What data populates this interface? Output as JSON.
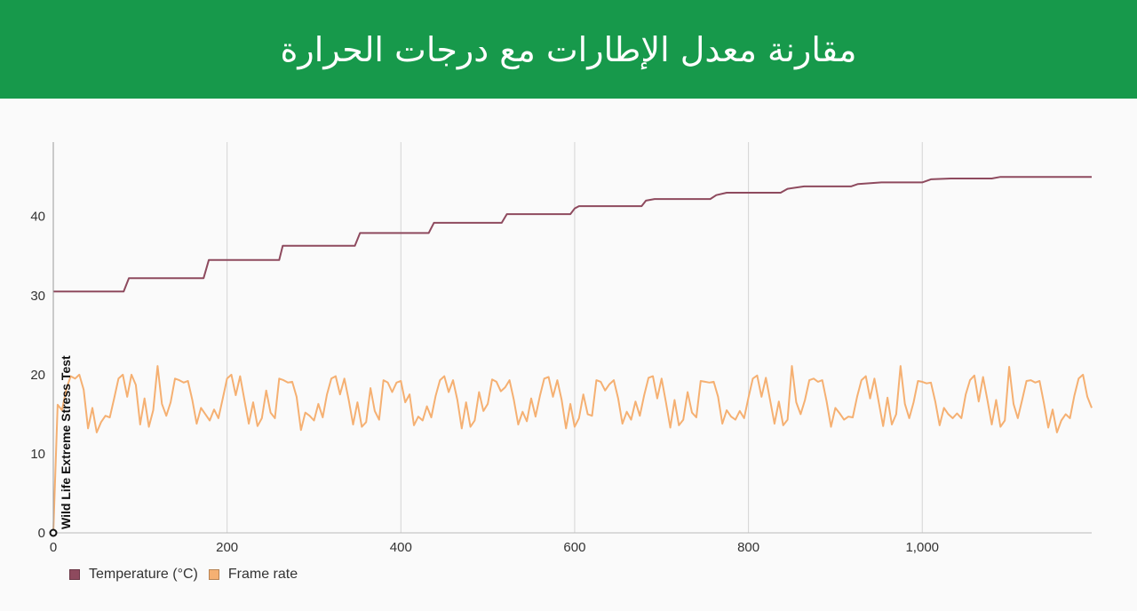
{
  "header": {
    "title": "مقارنة معدل الإطارات مع درجات الحرارة"
  },
  "chart_data": {
    "type": "line",
    "title": "مقارنة معدل الإطارات مع درجات الحرارة",
    "xlabel": "",
    "ylabel": "",
    "xlim": [
      0,
      1195
    ],
    "ylim": [
      0,
      49.4
    ],
    "x_ticks": [
      0,
      200,
      400,
      600,
      800,
      1000
    ],
    "x_tick_labels": [
      "0",
      "200",
      "400",
      "600",
      "800",
      "1,000"
    ],
    "y_ticks": [
      0,
      10,
      20,
      30,
      40
    ],
    "y_tick_labels": [
      "0",
      "10",
      "20",
      "30",
      "40"
    ],
    "grid": "vertical",
    "legend_position": "bottom-left",
    "annotation": {
      "text": "Wild Life Extreme Stress Test",
      "x": 0,
      "y": 0
    },
    "series": [
      {
        "name": "Temperature (°C)",
        "color": "#8e4a5e",
        "points": [
          [
            0,
            30.5
          ],
          [
            81,
            30.5
          ],
          [
            87,
            32.2
          ],
          [
            173,
            32.2
          ],
          [
            179,
            34.5
          ],
          [
            260,
            34.5
          ],
          [
            264,
            36.3
          ],
          [
            347,
            36.3
          ],
          [
            353,
            37.9
          ],
          [
            432,
            37.9
          ],
          [
            438,
            39.2
          ],
          [
            516,
            39.2
          ],
          [
            522,
            40.3
          ],
          [
            595,
            40.3
          ],
          [
            600,
            41.0
          ],
          [
            605,
            41.3
          ],
          [
            677,
            41.3
          ],
          [
            682,
            42.0
          ],
          [
            692,
            42.2
          ],
          [
            756,
            42.2
          ],
          [
            763,
            42.7
          ],
          [
            775,
            43.0
          ],
          [
            837,
            43.0
          ],
          [
            845,
            43.5
          ],
          [
            864,
            43.8
          ],
          [
            918,
            43.8
          ],
          [
            926,
            44.1
          ],
          [
            953,
            44.3
          ],
          [
            1000,
            44.3
          ],
          [
            1010,
            44.7
          ],
          [
            1033,
            44.8
          ],
          [
            1080,
            44.8
          ],
          [
            1090,
            45.0
          ],
          [
            1195,
            45.0
          ]
        ]
      },
      {
        "name": "Frame rate",
        "color": "#f5b072",
        "points": [
          [
            0,
            0
          ],
          [
            5,
            16.2
          ],
          [
            10,
            15.5
          ],
          [
            15,
            18.2
          ],
          [
            20,
            19.8
          ],
          [
            25,
            19.5
          ],
          [
            30,
            20.0
          ],
          [
            35,
            18.1
          ],
          [
            40,
            13.2
          ],
          [
            45,
            15.8
          ],
          [
            50,
            12.7
          ],
          [
            55,
            14.0
          ],
          [
            60,
            14.8
          ],
          [
            65,
            14.6
          ],
          [
            70,
            17.0
          ],
          [
            75,
            19.5
          ],
          [
            80,
            20.0
          ],
          [
            85,
            17.2
          ],
          [
            90,
            20.0
          ],
          [
            95,
            18.7
          ],
          [
            100,
            13.7
          ],
          [
            105,
            17.0
          ],
          [
            110,
            13.4
          ],
          [
            115,
            15.5
          ],
          [
            120,
            21.1
          ],
          [
            125,
            16.3
          ],
          [
            130,
            14.8
          ],
          [
            135,
            16.5
          ],
          [
            140,
            19.5
          ],
          [
            145,
            19.3
          ],
          [
            150,
            19.0
          ],
          [
            155,
            19.2
          ],
          [
            160,
            16.8
          ],
          [
            165,
            13.8
          ],
          [
            170,
            15.8
          ],
          [
            175,
            15.0
          ],
          [
            180,
            14.2
          ],
          [
            185,
            15.6
          ],
          [
            190,
            14.5
          ],
          [
            195,
            17.0
          ],
          [
            200,
            19.5
          ],
          [
            205,
            20.0
          ],
          [
            210,
            17.4
          ],
          [
            215,
            19.8
          ],
          [
            220,
            16.8
          ],
          [
            225,
            13.8
          ],
          [
            230,
            16.5
          ],
          [
            235,
            13.5
          ],
          [
            240,
            14.5
          ],
          [
            245,
            18.0
          ],
          [
            250,
            15.2
          ],
          [
            255,
            14.5
          ],
          [
            260,
            19.5
          ],
          [
            265,
            19.3
          ],
          [
            270,
            19.0
          ],
          [
            275,
            19.1
          ],
          [
            280,
            17.2
          ],
          [
            285,
            13.0
          ],
          [
            290,
            15.2
          ],
          [
            295,
            14.8
          ],
          [
            300,
            14.2
          ],
          [
            305,
            16.3
          ],
          [
            310,
            14.6
          ],
          [
            315,
            17.5
          ],
          [
            320,
            19.5
          ],
          [
            325,
            19.8
          ],
          [
            330,
            17.5
          ],
          [
            335,
            19.5
          ],
          [
            340,
            16.8
          ],
          [
            345,
            13.7
          ],
          [
            350,
            16.5
          ],
          [
            355,
            13.4
          ],
          [
            360,
            14.0
          ],
          [
            365,
            18.3
          ],
          [
            370,
            15.4
          ],
          [
            375,
            14.3
          ],
          [
            380,
            19.3
          ],
          [
            385,
            19.0
          ],
          [
            390,
            17.8
          ],
          [
            395,
            19.0
          ],
          [
            400,
            19.2
          ],
          [
            405,
            16.5
          ],
          [
            410,
            17.5
          ],
          [
            415,
            13.6
          ],
          [
            420,
            14.7
          ],
          [
            425,
            14.2
          ],
          [
            430,
            16.0
          ],
          [
            435,
            14.6
          ],
          [
            440,
            17.3
          ],
          [
            445,
            19.3
          ],
          [
            450,
            19.8
          ],
          [
            455,
            17.8
          ],
          [
            460,
            19.3
          ],
          [
            465,
            16.8
          ],
          [
            470,
            13.2
          ],
          [
            475,
            16.5
          ],
          [
            480,
            13.4
          ],
          [
            485,
            14.2
          ],
          [
            490,
            17.8
          ],
          [
            495,
            15.4
          ],
          [
            500,
            16.3
          ],
          [
            505,
            19.4
          ],
          [
            510,
            19.1
          ],
          [
            515,
            17.9
          ],
          [
            520,
            18.4
          ],
          [
            525,
            19.3
          ],
          [
            530,
            16.8
          ],
          [
            535,
            13.7
          ],
          [
            540,
            15.3
          ],
          [
            545,
            14.1
          ],
          [
            550,
            17.0
          ],
          [
            555,
            14.7
          ],
          [
            560,
            17.3
          ],
          [
            565,
            19.5
          ],
          [
            570,
            19.7
          ],
          [
            575,
            17.2
          ],
          [
            580,
            19.3
          ],
          [
            585,
            16.8
          ],
          [
            590,
            13.2
          ],
          [
            595,
            16.3
          ],
          [
            600,
            13.4
          ],
          [
            605,
            14.5
          ],
          [
            610,
            17.5
          ],
          [
            615,
            15.0
          ],
          [
            620,
            14.8
          ],
          [
            625,
            19.3
          ],
          [
            630,
            19.1
          ],
          [
            635,
            18.0
          ],
          [
            640,
            18.8
          ],
          [
            645,
            19.3
          ],
          [
            650,
            17.0
          ],
          [
            655,
            13.8
          ],
          [
            660,
            15.3
          ],
          [
            665,
            14.3
          ],
          [
            670,
            16.6
          ],
          [
            675,
            14.8
          ],
          [
            680,
            17.4
          ],
          [
            685,
            19.6
          ],
          [
            690,
            19.8
          ],
          [
            695,
            17.0
          ],
          [
            700,
            19.5
          ],
          [
            705,
            16.5
          ],
          [
            710,
            13.3
          ],
          [
            715,
            16.8
          ],
          [
            720,
            13.6
          ],
          [
            725,
            14.3
          ],
          [
            730,
            17.8
          ],
          [
            735,
            15.2
          ],
          [
            740,
            14.6
          ],
          [
            745,
            19.2
          ],
          [
            750,
            19.1
          ],
          [
            755,
            19.0
          ],
          [
            760,
            19.1
          ],
          [
            765,
            17.2
          ],
          [
            770,
            13.8
          ],
          [
            775,
            15.5
          ],
          [
            780,
            14.7
          ],
          [
            785,
            14.3
          ],
          [
            790,
            15.4
          ],
          [
            795,
            14.5
          ],
          [
            800,
            17.1
          ],
          [
            805,
            19.5
          ],
          [
            810,
            19.9
          ],
          [
            815,
            17.2
          ],
          [
            820,
            19.6
          ],
          [
            825,
            16.7
          ],
          [
            830,
            13.8
          ],
          [
            835,
            16.6
          ],
          [
            840,
            13.6
          ],
          [
            845,
            14.3
          ],
          [
            850,
            21.1
          ],
          [
            855,
            16.5
          ],
          [
            860,
            15.0
          ],
          [
            865,
            16.8
          ],
          [
            870,
            19.3
          ],
          [
            875,
            19.5
          ],
          [
            880,
            19.1
          ],
          [
            885,
            19.3
          ],
          [
            890,
            16.6
          ],
          [
            895,
            13.4
          ],
          [
            900,
            15.8
          ],
          [
            905,
            15.1
          ],
          [
            910,
            14.3
          ],
          [
            915,
            14.7
          ],
          [
            920,
            14.6
          ],
          [
            925,
            17.2
          ],
          [
            930,
            19.3
          ],
          [
            935,
            19.8
          ],
          [
            940,
            17.0
          ],
          [
            945,
            19.5
          ],
          [
            950,
            16.5
          ],
          [
            955,
            13.5
          ],
          [
            960,
            17.1
          ],
          [
            965,
            13.7
          ],
          [
            970,
            15.0
          ],
          [
            975,
            21.1
          ],
          [
            980,
            16.3
          ],
          [
            985,
            14.5
          ],
          [
            990,
            16.5
          ],
          [
            995,
            19.2
          ],
          [
            1000,
            19.1
          ],
          [
            1005,
            18.9
          ],
          [
            1010,
            19.0
          ],
          [
            1015,
            16.6
          ],
          [
            1020,
            13.6
          ],
          [
            1025,
            15.8
          ],
          [
            1030,
            15.0
          ],
          [
            1035,
            14.5
          ],
          [
            1040,
            15.1
          ],
          [
            1045,
            14.5
          ],
          [
            1050,
            17.5
          ],
          [
            1055,
            19.3
          ],
          [
            1060,
            19.9
          ],
          [
            1065,
            16.6
          ],
          [
            1070,
            19.7
          ],
          [
            1075,
            16.8
          ],
          [
            1080,
            13.7
          ],
          [
            1085,
            16.8
          ],
          [
            1090,
            13.4
          ],
          [
            1095,
            14.2
          ],
          [
            1100,
            21.0
          ],
          [
            1105,
            16.3
          ],
          [
            1110,
            14.5
          ],
          [
            1115,
            16.8
          ],
          [
            1120,
            19.2
          ],
          [
            1125,
            19.3
          ],
          [
            1130,
            19.0
          ],
          [
            1135,
            19.2
          ],
          [
            1140,
            16.4
          ],
          [
            1145,
            13.3
          ],
          [
            1150,
            15.6
          ],
          [
            1155,
            12.7
          ],
          [
            1160,
            14.2
          ],
          [
            1165,
            15.0
          ],
          [
            1170,
            14.5
          ],
          [
            1175,
            17.3
          ],
          [
            1180,
            19.5
          ],
          [
            1185,
            20.0
          ],
          [
            1190,
            17.2
          ],
          [
            1195,
            15.8
          ]
        ]
      }
    ]
  }
}
